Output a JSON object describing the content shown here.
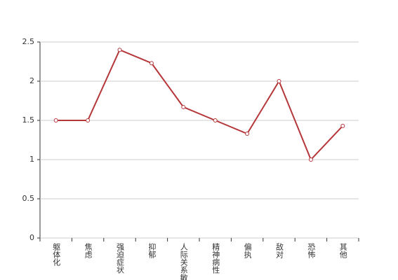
{
  "chart_data": {
    "type": "line",
    "categories": [
      "躯体化",
      "焦虑",
      "强迫症状",
      "抑郁",
      "人际关系敏感",
      "精神病性",
      "偏执",
      "敌对",
      "恐怖",
      "其他"
    ],
    "values": [
      1.5,
      1.5,
      2.4,
      2.23,
      1.67,
      1.5,
      1.33,
      2.0,
      1.0,
      1.43
    ],
    "color": "#b5373a",
    "ylim": [
      0,
      2.5
    ],
    "yticks": [
      0,
      0.5,
      1,
      1.5,
      2,
      2.5
    ],
    "grid": true
  }
}
